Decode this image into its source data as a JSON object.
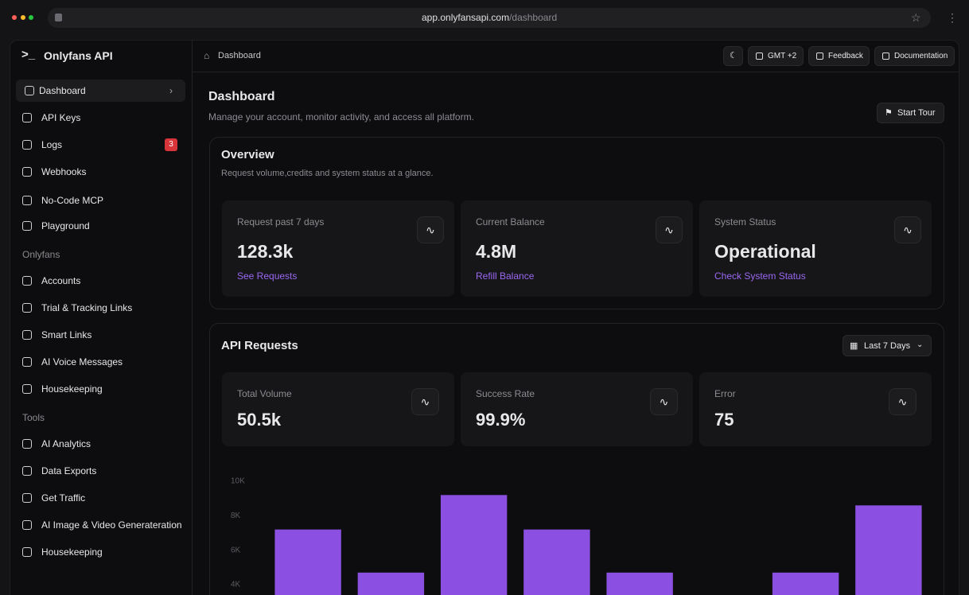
{
  "browser": {
    "url_host": "app.onlyfansapi.com",
    "url_path": "/dashboard"
  },
  "sidebar": {
    "brand": "Onlyfans API",
    "items": [
      {
        "label": "Dashboard"
      },
      {
        "label": "API Keys"
      },
      {
        "label": "Logs",
        "badge": "3"
      },
      {
        "label": "Webhooks"
      },
      {
        "label": "No-Code MCP"
      },
      {
        "label": "Playground"
      }
    ],
    "groups": [
      {
        "title": "Onlyfans",
        "items": [
          {
            "label": "Accounts"
          },
          {
            "label": "Trial & Tracking Links"
          },
          {
            "label": "Smart Links"
          },
          {
            "label": "AI Voice Messages"
          },
          {
            "label": "Housekeeping"
          }
        ]
      },
      {
        "title": "Tools",
        "items": [
          {
            "label": "AI Analytics"
          },
          {
            "label": "Data Exports"
          },
          {
            "label": "Get Traffic"
          },
          {
            "label": "AI Image & Video Generateration"
          },
          {
            "label": "Housekeeping"
          }
        ]
      }
    ]
  },
  "topbar": {
    "breadcrumb": "Dashboard",
    "buttons": [
      "GMT +2",
      "Feedback",
      "Documentation"
    ]
  },
  "header": {
    "title": "Dashboard",
    "subtitle": "Manage your account, monitor activity, and access all platform.",
    "button": "Start Tour"
  },
  "overview": {
    "title": "Overview",
    "subtitle": "Request volume,credits and system status at a glance.",
    "cards": [
      {
        "label": "Request past 7 days",
        "value": "128.3k",
        "link": "See Requests"
      },
      {
        "label": "Current Balance",
        "value": "4.8M",
        "link": "Refill Balance"
      },
      {
        "label": "System Status",
        "value": "Operational",
        "link": "Check System Status"
      }
    ]
  },
  "api_requests": {
    "title": "API Requests",
    "range": "Last 7 Days",
    "stats": [
      {
        "label": "Total Volume",
        "value": "50.5k"
      },
      {
        "label": "Success Rate",
        "value": "99.9%"
      },
      {
        "label": "Error",
        "value": "75"
      }
    ]
  },
  "chart_data": {
    "type": "bar",
    "categories": [
      null,
      null,
      null,
      null,
      null,
      null,
      null,
      null
    ],
    "values": [
      7200,
      4700,
      9200,
      7200,
      4700,
      null,
      4700,
      8600
    ],
    "color": "#8b50e2",
    "ylim": [
      4000,
      10000
    ],
    "yticks": [
      {
        "value": 4000,
        "label": "4K"
      },
      {
        "value": 6000,
        "label": "6K"
      },
      {
        "value": 8000,
        "label": "8K"
      },
      {
        "value": 10000,
        "label": "10K"
      }
    ]
  }
}
